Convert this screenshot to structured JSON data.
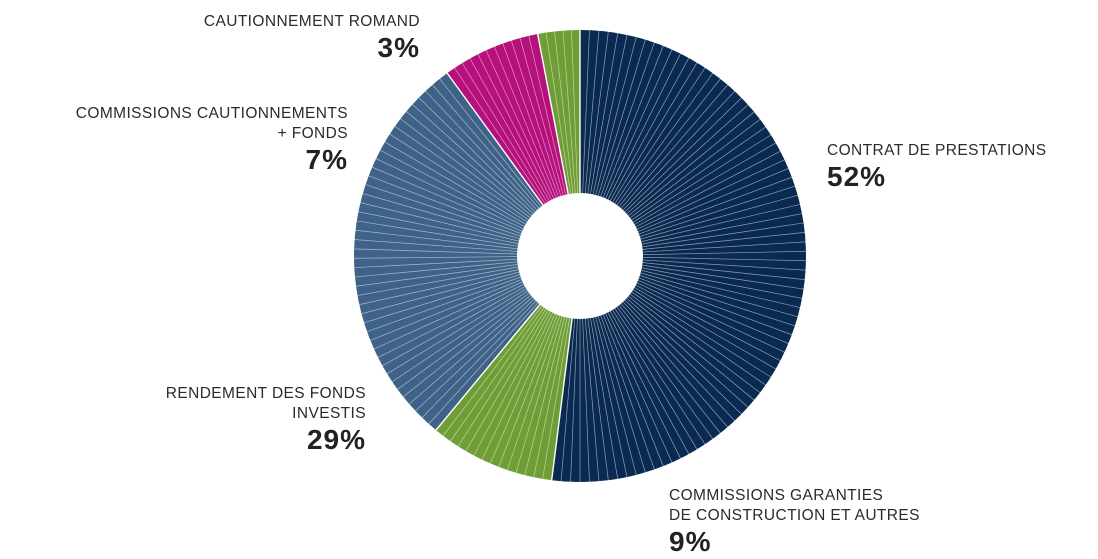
{
  "chart_data": {
    "type": "pie",
    "donut": true,
    "slices": [
      {
        "label_lines": [
          "CONTRAT DE PRESTATIONS"
        ],
        "value": 52,
        "value_label": "52%",
        "color": "#0b2a52"
      },
      {
        "label_lines": [
          "COMMISSIONS GARANTIES",
          "DE CONSTRUCTION ET AUTRES"
        ],
        "value": 9,
        "value_label": "9%",
        "color": "#6f9e36"
      },
      {
        "label_lines": [
          "RENDEMENT DES FONDS",
          "INVESTIS"
        ],
        "value": 29,
        "value_label": "29%",
        "color": "#3f6289"
      },
      {
        "label_lines": [
          "COMMISSIONS CAUTIONNEMENTS",
          "+ FONDS"
        ],
        "value": 7,
        "value_label": "7%",
        "color": "#b5107c"
      },
      {
        "label_lines": [
          "CAUTIONNEMENT ROMAND"
        ],
        "value": 3,
        "value_label": "3%",
        "color": "#6f9e36"
      }
    ]
  }
}
